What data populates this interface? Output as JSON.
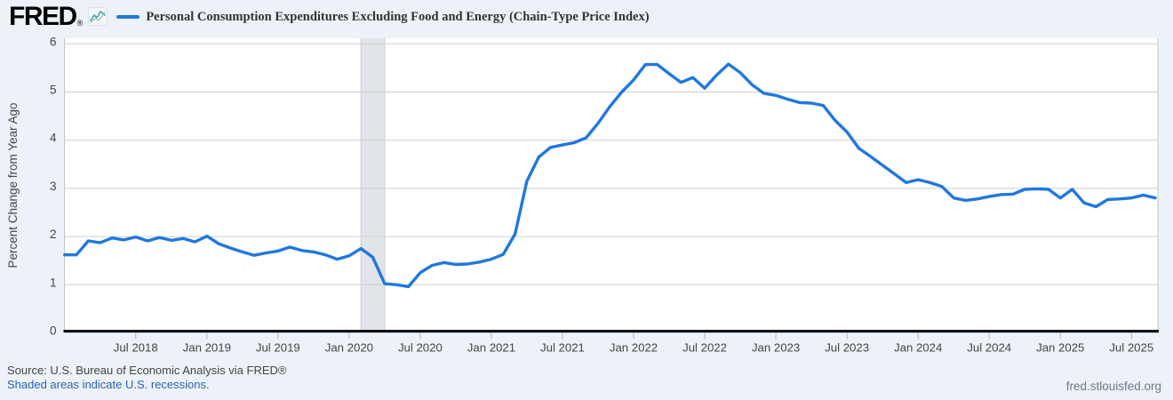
{
  "header": {
    "logo_text": "FRED",
    "registered_mark": "®",
    "legend_label": "Personal Consumption Expenditures Excluding Food and Energy (Chain-Type Price Index)"
  },
  "footer": {
    "source": "Source: U.S. Bureau of Economic Analysis via FRED®",
    "recession_note": "Shaded areas indicate U.S. recessions.",
    "site": "fred.stlouisfed.org"
  },
  "colors": {
    "background": "#edf2f9",
    "plot_background": "#ffffff",
    "line": "#2077e0",
    "grid": "#cfcfcf",
    "plot_border": "#c0c4c9",
    "recession_band": "#e1e4e9",
    "recession_band_edge": "#c9ced6",
    "axis_line": "#000000",
    "tick_mark": "#aab4c2",
    "axis_text": "#444444",
    "title_text": "#333333",
    "link": "#2c62b0",
    "site_text": "#6e7987"
  },
  "chart_data": {
    "type": "line",
    "title": "Personal Consumption Expenditures Excluding Food and Energy (Chain-Type Price Index)",
    "ylabel": "Percent Change from Year Ago",
    "xlabel": "",
    "frequency": "monthly",
    "x_start": "2018-01",
    "x_end": "2025-09",
    "ylim": [
      0,
      6
    ],
    "grid": true,
    "legend_position": "top-left",
    "y_ticks": [
      0,
      1,
      2,
      3,
      4,
      5,
      6
    ],
    "x_ticklabels": [
      "Jul 2018",
      "Jan 2019",
      "Jul 2019",
      "Jan 2020",
      "Jul 2020",
      "Jan 2021",
      "Jul 2021",
      "Jan 2022",
      "Jul 2022",
      "Jan 2023",
      "Jul 2023",
      "Jan 2024",
      "Jul 2024",
      "Jan 2025",
      "Jul 2025"
    ],
    "x_tick_month_indices": [
      6,
      12,
      18,
      24,
      30,
      36,
      42,
      48,
      54,
      60,
      66,
      72,
      78,
      84,
      90
    ],
    "recession_bands": [
      {
        "from": "2020-02",
        "to": "2020-04"
      }
    ],
    "values": [
      1.62,
      1.62,
      1.91,
      1.87,
      1.97,
      1.93,
      1.99,
      1.91,
      1.98,
      1.92,
      1.96,
      1.89,
      2.01,
      1.85,
      1.76,
      1.68,
      1.61,
      1.66,
      1.7,
      1.78,
      1.71,
      1.68,
      1.62,
      1.53,
      1.6,
      1.75,
      1.57,
      1.02,
      1.0,
      0.96,
      1.25,
      1.4,
      1.46,
      1.42,
      1.43,
      1.47,
      1.53,
      1.63,
      2.05,
      3.15,
      3.65,
      3.85,
      3.9,
      3.95,
      4.05,
      4.35,
      4.7,
      5.0,
      5.25,
      5.57,
      5.57,
      5.38,
      5.2,
      5.3,
      5.08,
      5.35,
      5.58,
      5.4,
      5.15,
      4.97,
      4.93,
      4.85,
      4.78,
      4.77,
      4.72,
      4.41,
      4.17,
      3.83,
      3.66,
      3.48,
      3.3,
      3.12,
      3.18,
      3.12,
      3.04,
      2.8,
      2.75,
      2.78,
      2.83,
      2.87,
      2.88,
      2.98,
      2.99,
      2.98,
      2.8,
      2.98,
      2.7,
      2.62,
      2.77,
      2.78,
      2.8,
      2.86,
      2.8
    ]
  }
}
